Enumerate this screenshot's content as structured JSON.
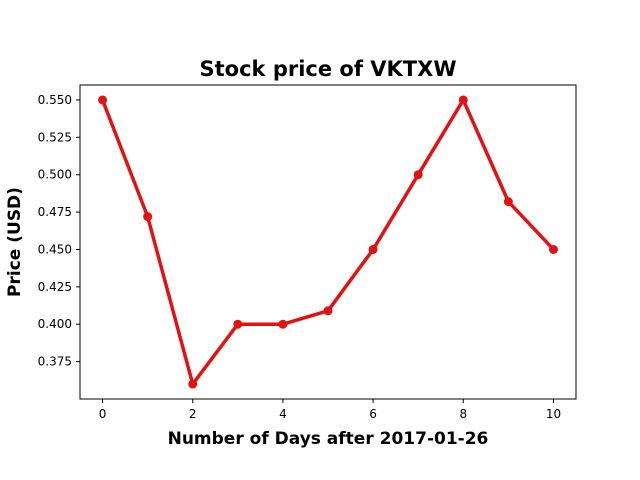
{
  "chart_data": {
    "type": "line",
    "title": "Stock price of VKTXW",
    "xlabel": "Number of Days after 2017-01-26",
    "ylabel": "Price (USD)",
    "x": [
      0,
      1,
      2,
      3,
      4,
      5,
      6,
      7,
      8,
      9,
      10
    ],
    "series": [
      {
        "values": [
          0.55,
          0.472,
          0.36,
          0.4,
          0.4,
          0.409,
          0.45,
          0.5,
          0.55,
          0.482,
          0.45
        ],
        "color": "#e31212"
      }
    ],
    "xlim": [
      -0.5,
      10.5
    ],
    "ylim": [
      0.35,
      0.56
    ],
    "xticks": [
      0,
      2,
      4,
      6,
      8,
      10
    ],
    "xtick_labels": [
      "0",
      "2",
      "4",
      "6",
      "8",
      "10"
    ],
    "yticks": [
      0.375,
      0.4,
      0.425,
      0.45,
      0.475,
      0.5,
      0.525,
      0.55
    ],
    "ytick_labels": [
      "0.375",
      "0.400",
      "0.425",
      "0.450",
      "0.475",
      "0.500",
      "0.525",
      "0.550"
    ],
    "grid": false,
    "legend": false,
    "markers": "circle"
  }
}
